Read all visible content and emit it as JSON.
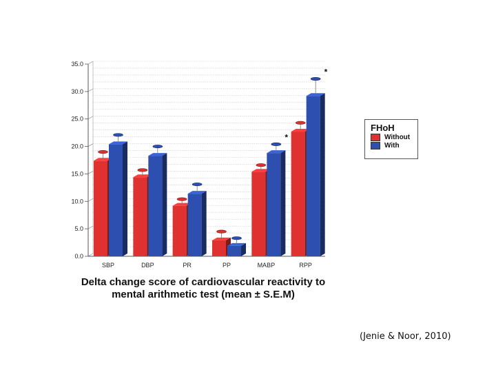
{
  "chart_data": {
    "type": "bar",
    "title": "Delta change score of cardiovascular reactivity to mental arithmetic test (mean ± S.E.M)",
    "categories": [
      "SBP",
      "DBP",
      "PR",
      "PP",
      "MABP",
      "RPP"
    ],
    "series": [
      {
        "name": "Without",
        "color": "#e03131",
        "values": [
          17.4,
          14.4,
          9.2,
          2.9,
          15.4,
          22.7
        ],
        "errors": [
          1.6,
          1.3,
          1.2,
          1.6,
          1.2,
          1.6
        ]
      },
      {
        "name": "With",
        "color": "#2d4fb0",
        "values": [
          20.4,
          18.3,
          11.4,
          1.9,
          18.8,
          29.2
        ],
        "errors": [
          1.7,
          1.7,
          1.7,
          1.4,
          1.6,
          3.1
        ]
      }
    ],
    "significance": [
      "",
      "",
      "",
      "",
      "*",
      "*"
    ],
    "ylim": [
      0,
      35
    ],
    "yticks": [
      "0.0",
      "5.0",
      "10.0",
      "15.0",
      "20.0",
      "25.0",
      "30.0",
      "35.0"
    ],
    "grid": true,
    "legend": {
      "title": "FHoH",
      "position": "right"
    },
    "xlabel": "",
    "ylabel": ""
  },
  "caption": {
    "line1": "Delta change score of cardiovascular reactivity to",
    "line2": "mental arithmetic test (mean ± S.E.M)"
  },
  "citation": "(Jenie & Noor, 2010)"
}
